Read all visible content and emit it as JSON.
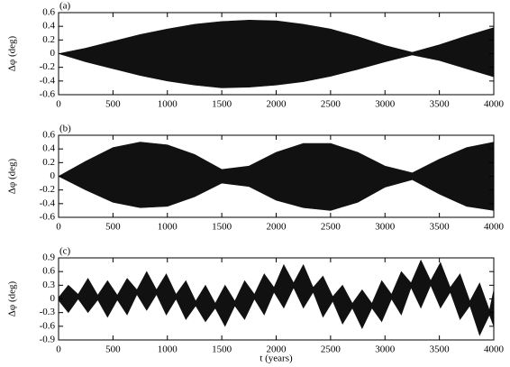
{
  "chart_data": [
    {
      "type": "band",
      "label": "(a)",
      "ylabel": "Δφ (deg)",
      "color": "#111111",
      "x": [
        0,
        250,
        500,
        750,
        1000,
        1250,
        1500,
        1750,
        2000,
        2250,
        2500,
        2750,
        3000,
        3250,
        3500,
        3750,
        4000
      ],
      "upper": [
        0,
        0.08,
        0.18,
        0.28,
        0.36,
        0.43,
        0.47,
        0.49,
        0.48,
        0.43,
        0.36,
        0.25,
        0.12,
        0.02,
        0.13,
        0.26,
        0.38
      ],
      "lower": [
        0,
        -0.12,
        -0.22,
        -0.32,
        -0.4,
        -0.46,
        -0.5,
        -0.49,
        -0.46,
        -0.41,
        -0.33,
        -0.23,
        -0.12,
        -0.02,
        -0.1,
        -0.22,
        -0.34
      ],
      "xlim": [
        0,
        4000
      ],
      "ylim": [
        -0.6,
        0.6
      ],
      "xticks": [
        0,
        500,
        1000,
        1500,
        2000,
        2500,
        3000,
        3500,
        4000
      ],
      "yticks": [
        -0.6,
        -0.4,
        -0.2,
        0,
        0.2,
        0.4,
        0.6
      ]
    },
    {
      "type": "band",
      "label": "(b)",
      "ylabel": "Δφ (deg)",
      "color": "#111111",
      "x": [
        0,
        250,
        500,
        750,
        1000,
        1250,
        1500,
        1750,
        2000,
        2250,
        2500,
        2750,
        3000,
        3250,
        3500,
        3750,
        4000
      ],
      "upper": [
        0,
        0.22,
        0.42,
        0.5,
        0.46,
        0.32,
        0.1,
        0.15,
        0.35,
        0.48,
        0.48,
        0.35,
        0.15,
        0.05,
        0.25,
        0.42,
        0.5
      ],
      "lower": [
        0,
        -0.2,
        -0.38,
        -0.46,
        -0.44,
        -0.3,
        -0.1,
        -0.15,
        -0.35,
        -0.46,
        -0.5,
        -0.38,
        -0.16,
        -0.05,
        -0.26,
        -0.44,
        -0.5
      ],
      "xlim": [
        0,
        4000
      ],
      "ylim": [
        -0.6,
        0.6
      ],
      "xticks": [
        0,
        500,
        1000,
        1500,
        2000,
        2500,
        3000,
        3500,
        4000
      ],
      "yticks": [
        -0.6,
        -0.4,
        -0.2,
        0,
        0.2,
        0.4,
        0.6
      ]
    },
    {
      "type": "band",
      "label": "(c)",
      "ylabel": "Δφ (deg)",
      "xlabel": "t (years)",
      "color": "#111111",
      "x": [
        0,
        90,
        180,
        270,
        360,
        450,
        540,
        630,
        720,
        810,
        900,
        990,
        1080,
        1170,
        1260,
        1350,
        1440,
        1530,
        1620,
        1710,
        1800,
        1890,
        1980,
        2070,
        2160,
        2250,
        2340,
        2430,
        2520,
        2610,
        2700,
        2790,
        2880,
        2970,
        3060,
        3150,
        3240,
        3330,
        3420,
        3510,
        3600,
        3690,
        3780,
        3870,
        3960,
        4000
      ],
      "upper": [
        0.03,
        0.3,
        0.1,
        0.45,
        0.08,
        0.4,
        0.08,
        0.45,
        0.2,
        0.6,
        0.2,
        0.55,
        0.1,
        0.4,
        -0.05,
        0.3,
        -0.1,
        0.3,
        -0.05,
        0.4,
        0.1,
        0.55,
        0.25,
        0.75,
        0.35,
        0.75,
        0.25,
        0.5,
        0.05,
        0.3,
        -0.1,
        0.2,
        -0.1,
        0.4,
        0.1,
        0.6,
        0.35,
        0.85,
        0.4,
        0.8,
        0.25,
        0.55,
        -0.05,
        0.35,
        -0.25,
        0.2
      ],
      "lower": [
        -0.03,
        -0.3,
        0,
        -0.3,
        -0.02,
        -0.4,
        -0.02,
        -0.35,
        0.1,
        -0.25,
        0.1,
        -0.35,
        0,
        -0.45,
        -0.15,
        -0.5,
        -0.2,
        -0.6,
        -0.15,
        -0.45,
        0,
        -0.35,
        0.15,
        -0.2,
        0.25,
        -0.2,
        0.15,
        -0.4,
        -0.05,
        -0.55,
        -0.2,
        -0.65,
        -0.2,
        -0.5,
        0,
        -0.35,
        0.25,
        -0.2,
        0.3,
        -0.2,
        0.15,
        -0.45,
        -0.15,
        -0.8,
        -0.35,
        -0.6
      ],
      "xlim": [
        0,
        4000
      ],
      "ylim": [
        -0.9,
        0.9
      ],
      "xticks": [
        0,
        500,
        1000,
        1500,
        2000,
        2500,
        3000,
        3500,
        4000
      ],
      "yticks": [
        -0.9,
        -0.6,
        -0.3,
        0,
        0.3,
        0.6,
        0.9
      ]
    }
  ]
}
